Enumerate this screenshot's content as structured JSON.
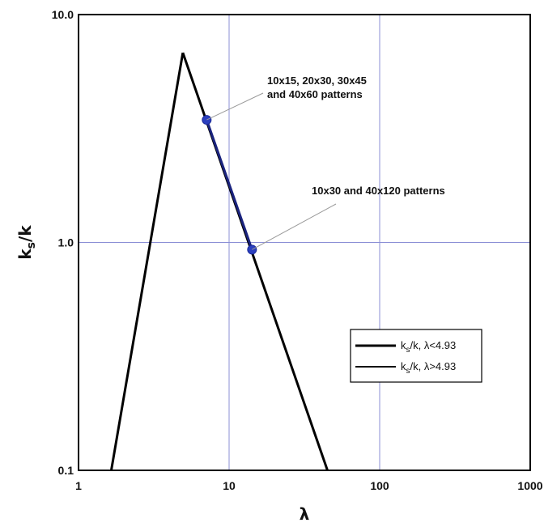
{
  "chart_data": {
    "type": "line",
    "x_scale": "log",
    "y_scale": "log",
    "xlim": [
      1,
      1000
    ],
    "ylim": [
      0.1,
      10
    ],
    "grid": true,
    "x_ticks": [
      "1",
      "10",
      "100",
      "1000"
    ],
    "y_ticks": [
      "0.1",
      "1.0",
      "10.0"
    ],
    "xlabel": "λ",
    "ylabel": {
      "base": "k",
      "sub": "s",
      "tail": "/k"
    },
    "series": [
      {
        "label": {
          "base": "k",
          "sub": "s",
          "tail": "/k, λ<4.93"
        },
        "color": "#000000",
        "points": [
          [
            1.65,
            0.1
          ],
          [
            4.93,
            6.8
          ]
        ]
      },
      {
        "label": {
          "base": "k",
          "sub": "s",
          "tail": "/k, λ>4.93"
        },
        "color": "#000000",
        "points": [
          [
            4.93,
            6.8
          ],
          [
            45,
            0.1
          ]
        ]
      }
    ],
    "highlight_segment": {
      "color": "#1a237e",
      "points": [
        [
          7.1,
          3.45
        ],
        [
          14.2,
          0.93
        ]
      ]
    },
    "markers": [
      {
        "x": 7.1,
        "y": 3.45,
        "color": "#2b3fbf"
      },
      {
        "x": 14.2,
        "y": 0.93,
        "color": "#2b3fbf"
      }
    ],
    "annotations": [
      {
        "lines": [
          "10x15, 20x30, 30x45",
          "and 40x60 patterns"
        ],
        "point": [
          7.1,
          3.45
        ]
      },
      {
        "lines": [
          "10x30 and 40x120 patterns"
        ],
        "point": [
          14.2,
          0.93
        ]
      }
    ],
    "legend_position": "lower-right",
    "colors": {
      "grid": "#8b8fd6",
      "frame": "#000000",
      "marker": "#2b3fbf"
    }
  }
}
